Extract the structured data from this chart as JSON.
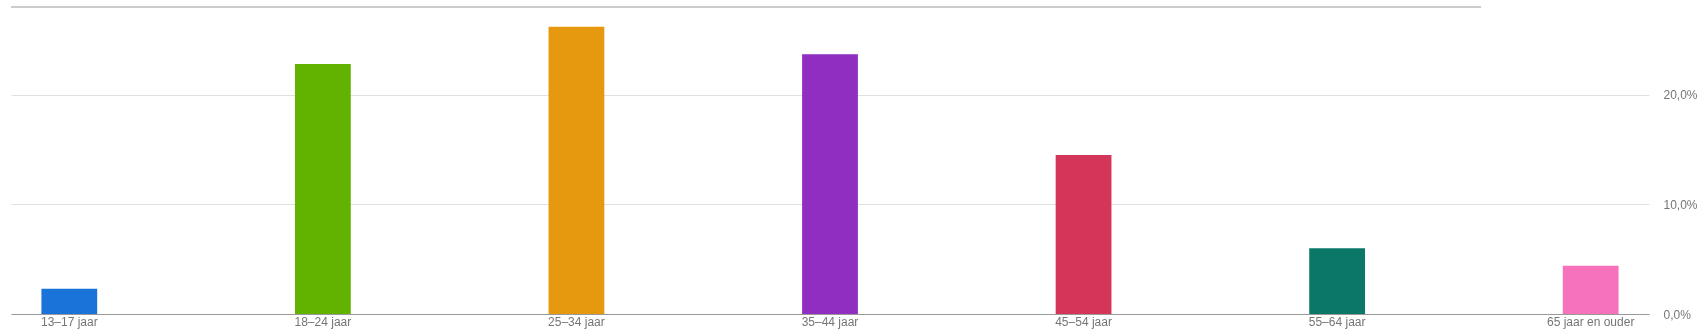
{
  "chart_data": {
    "type": "bar",
    "categories": [
      "13–17 jaar",
      "18–24 jaar",
      "25–34 jaar",
      "35–44 jaar",
      "45–54 jaar",
      "55–64 jaar",
      "65 jaar en ouder"
    ],
    "values": [
      2.3,
      22.8,
      26.2,
      23.7,
      14.5,
      6.0,
      4.4
    ],
    "colors": [
      "#1a73d9",
      "#62b300",
      "#e6980f",
      "#8f2ec0",
      "#d4365a",
      "#0b7768",
      "#f672bd"
    ],
    "ylim": [
      0,
      28
    ],
    "yticks": [
      {
        "value": 0,
        "label": "0,0%"
      },
      {
        "value": 10,
        "label": "10,0%"
      },
      {
        "value": 20,
        "label": "20,0%"
      }
    ],
    "grid": "y"
  }
}
